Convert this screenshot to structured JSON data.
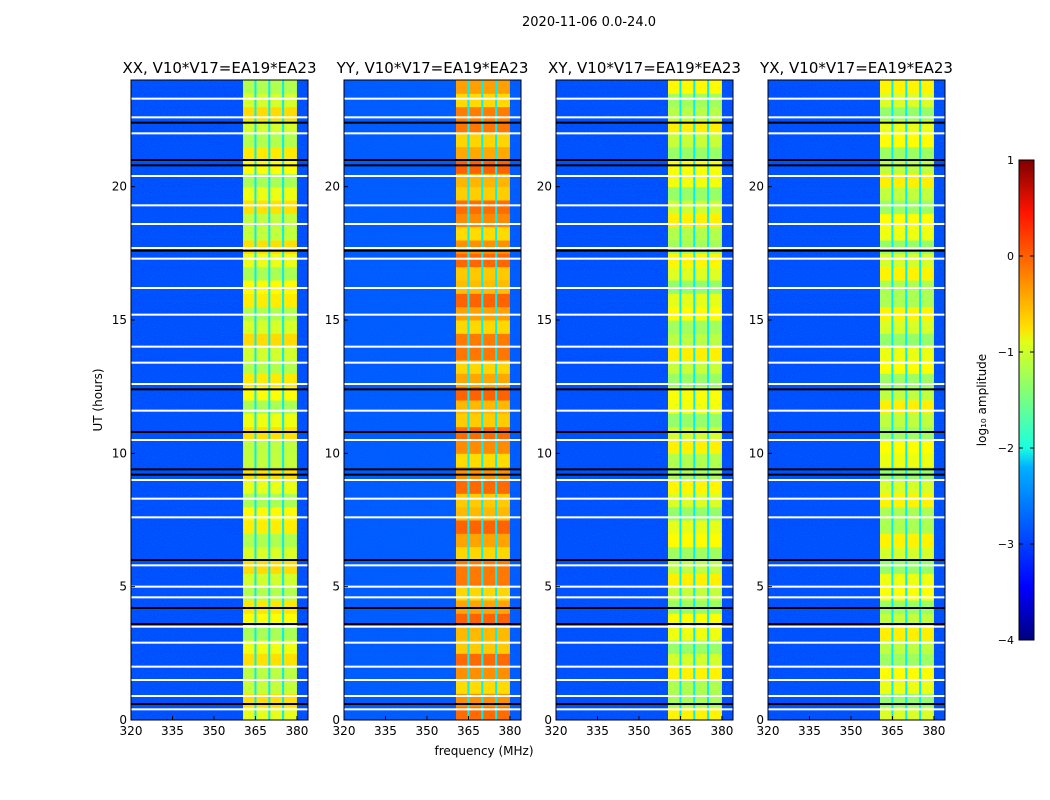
{
  "chart_data": {
    "type": "heatmap",
    "suptitle": "2020-11-06 0.0-24.0",
    "xlabel": "frequency (MHz)",
    "ylabel": "UT (hours)",
    "xlim": [
      320,
      384
    ],
    "ylim": [
      0,
      24
    ],
    "xticks": [
      "320",
      "335",
      "350",
      "365",
      "380"
    ],
    "xtick_values": [
      320,
      335,
      350,
      365,
      380
    ],
    "yticks": [
      "0",
      "5",
      "10",
      "15",
      "20"
    ],
    "ytick_values": [
      0,
      5,
      10,
      15,
      20
    ],
    "panels": [
      {
        "title": "XX, V10*V17=EA19*EA23",
        "band_level": -1.0,
        "background_level": -3.1
      },
      {
        "title": "YY, V10*V17=EA19*EA23",
        "band_level": -0.4,
        "background_level": -3.0
      },
      {
        "title": "XY, V10*V17=EA19*EA23",
        "band_level": -1.1,
        "background_level": -3.1
      },
      {
        "title": "YX, V10*V17=EA19*EA23",
        "band_level": -1.1,
        "background_level": -3.1
      }
    ],
    "band_mhz": [
      360.5,
      380
    ],
    "band_dividers_mhz": [
      365,
      370,
      375
    ],
    "flagged_white_ut": [
      23.3,
      22.6,
      22.0,
      20.4,
      19.3,
      18.6,
      17.7,
      17.3,
      16.2,
      15.2,
      14.0,
      13.4,
      12.6,
      11.6,
      10.5,
      9.0,
      8.3,
      7.6,
      5.8,
      5.0,
      4.6,
      3.5,
      2.9,
      2.0,
      1.5,
      0.9,
      0.4
    ],
    "flagged_black_ut": [
      22.4,
      21.0,
      20.8,
      17.6,
      12.4,
      10.8,
      9.4,
      9.2,
      6.0,
      4.2,
      3.6,
      0.6
    ],
    "colorbar": {
      "label": "log₁₀ amplitude",
      "range": [
        -4,
        1
      ],
      "ticks": [
        "1",
        "0",
        "−1",
        "−2",
        "−3",
        "−4"
      ],
      "tick_values": [
        1,
        0,
        -1,
        -2,
        -3,
        -4
      ]
    }
  }
}
